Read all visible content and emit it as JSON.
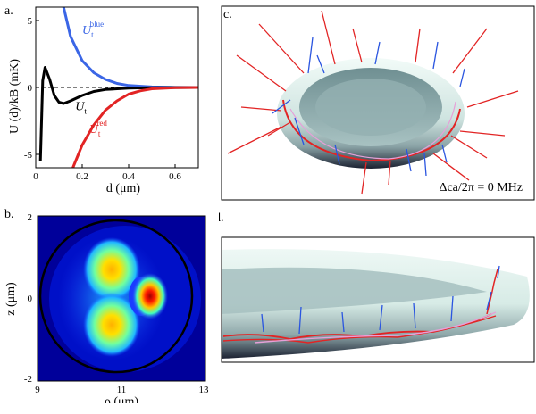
{
  "panel_a": {
    "label": "a.",
    "ylabel": "U (d)/kB (mK)",
    "xlabel": "d (μm)",
    "xticks": [
      "0",
      "0.2",
      "0.4",
      "0.6"
    ],
    "yticks": [
      "5",
      "0",
      "-5"
    ],
    "curve_labels": {
      "blue": {
        "main": "U",
        "sub": "t",
        "sup": "blue"
      },
      "black": {
        "main": "U",
        "sub": "t"
      },
      "red": {
        "main": "U",
        "sub": "t",
        "sup": "red"
      }
    },
    "colors": {
      "blue": "#3b66e6",
      "black": "#000000",
      "red": "#e22424"
    }
  },
  "panel_b": {
    "label": "b.",
    "ylabel": "z (μm)",
    "xlabel": "ρ (μm)",
    "xticks": [
      "9",
      "11",
      "13"
    ],
    "yticks": [
      "2",
      "0",
      "-2"
    ]
  },
  "panel_c": {
    "label": "c.",
    "annotation": "Δca/2π = 0 MHz"
  },
  "panel_d": {
    "label": "d."
  },
  "chart_data": {
    "type": "line",
    "title": "",
    "xlabel": "d (μm)",
    "ylabel": "U (d)/kB (mK)",
    "xlim": [
      0,
      0.7
    ],
    "ylim": [
      -6,
      6
    ],
    "series": [
      {
        "name": "U_t^blue",
        "x": [
          0.12,
          0.15,
          0.2,
          0.25,
          0.3,
          0.35,
          0.4,
          0.5,
          0.6,
          0.7
        ],
        "y": [
          6.0,
          3.8,
          2.0,
          1.1,
          0.6,
          0.3,
          0.15,
          0.04,
          0.01,
          0.0
        ]
      },
      {
        "name": "U_t",
        "x": [
          0.02,
          0.03,
          0.04,
          0.06,
          0.08,
          0.1,
          0.12,
          0.15,
          0.2,
          0.25,
          0.3,
          0.4,
          0.5,
          0.7
        ],
        "y": [
          -5.5,
          0.5,
          1.5,
          0.6,
          -0.6,
          -1.1,
          -1.2,
          -1.0,
          -0.6,
          -0.3,
          -0.15,
          -0.05,
          -0.01,
          0.0
        ]
      },
      {
        "name": "U_t^red",
        "x": [
          0.16,
          0.2,
          0.25,
          0.3,
          0.35,
          0.4,
          0.45,
          0.5,
          0.6,
          0.7
        ],
        "y": [
          -6.0,
          -4.3,
          -2.8,
          -1.7,
          -1.0,
          -0.5,
          -0.25,
          -0.1,
          -0.02,
          0.0
        ]
      }
    ]
  }
}
